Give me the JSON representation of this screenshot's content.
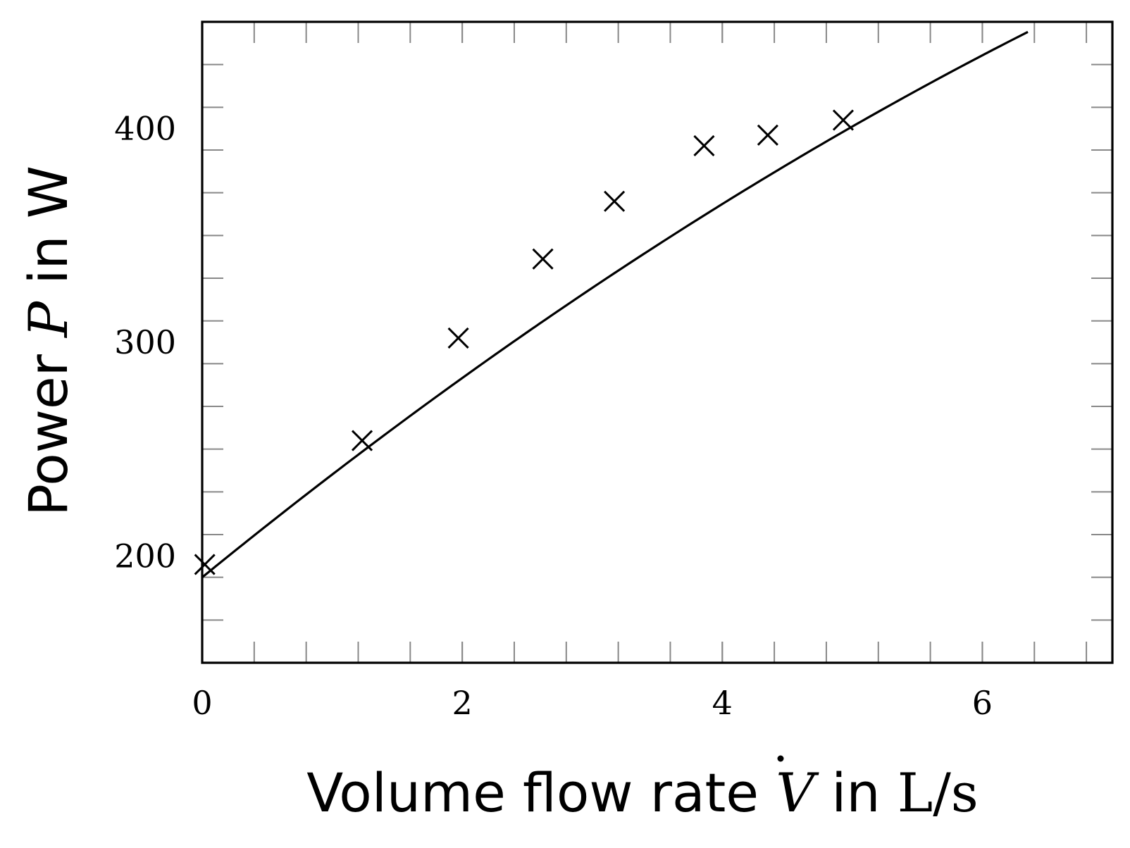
{
  "chart_data": {
    "type": "scatter",
    "title": "",
    "xlabel": {
      "prefix": "Volume flow rate ",
      "symbol": "V",
      "middle": " in ",
      "unit": "L/s"
    },
    "ylabel": {
      "prefix": "Power ",
      "symbol": "P",
      "suffix": " in W"
    },
    "xlim": [
      0,
      7
    ],
    "ylim": [
      150,
      450
    ],
    "x_ticks": [
      0,
      2,
      4,
      6
    ],
    "y_ticks": [
      200,
      300,
      400
    ],
    "x_minor_step": 0.4,
    "y_minor_step": 20,
    "grid": false,
    "series": [
      {
        "marker": "x",
        "points": [
          {
            "x": 0.02,
            "y": 196
          },
          {
            "x": 1.23,
            "y": 254
          },
          {
            "x": 1.97,
            "y": 302
          },
          {
            "x": 2.62,
            "y": 339
          },
          {
            "x": 3.17,
            "y": 366
          },
          {
            "x": 3.86,
            "y": 392
          },
          {
            "x": 4.35,
            "y": 397
          },
          {
            "x": 4.93,
            "y": 404
          }
        ]
      }
    ],
    "fit_curve": {
      "type": "quadratic",
      "x_range": [
        0,
        6.35
      ],
      "coefficients": {
        "a": -1.48,
        "b": 49.6,
        "c": 190
      }
    }
  }
}
